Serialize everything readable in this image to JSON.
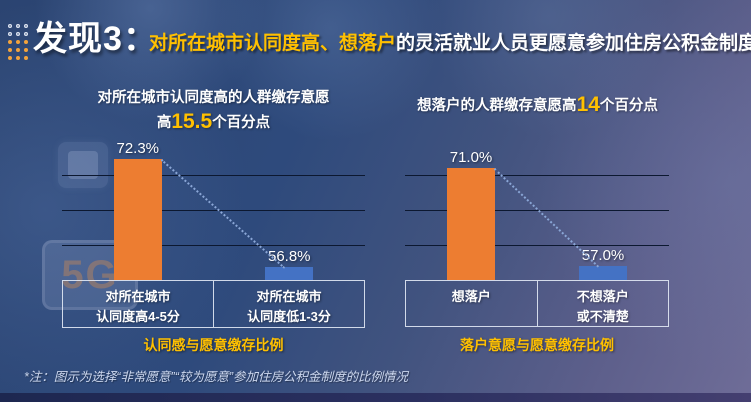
{
  "header": {
    "title": "发现3：",
    "headline_highlight": "对所在城市认同度高、想落户",
    "headline_rest": "的灵活就业人员更愿意参加住房公积金制度"
  },
  "chart_data": [
    {
      "type": "bar",
      "title": "认同感与愿意缴存比例",
      "subtitle": {
        "line1": "对所在城市认同度高的人群缴存意愿",
        "pre": "高",
        "value": "15.5",
        "post": "个百分点"
      },
      "categories": [
        "对所在城市\n认同度高4-5分",
        "对所在城市\n认同度低1-3分"
      ],
      "values": [
        72.3,
        56.8
      ],
      "value_labels": [
        "72.3%",
        "56.8%"
      ],
      "bar_colors": [
        "#ED7D31",
        "#4472C4"
      ],
      "ylim": [
        55,
        75
      ],
      "gridlines": [
        60,
        65,
        70
      ],
      "grid": true,
      "legend": false,
      "annotation": "dotted connector line from bar 1 top to bar 2 top"
    },
    {
      "type": "bar",
      "title": "落户意愿与愿意缴存比例",
      "subtitle": {
        "pre": "想落户的人群缴存意愿高",
        "value": "14",
        "post": "个百分点"
      },
      "categories": [
        "想落户",
        "不想落户\n或不清楚"
      ],
      "values": [
        71.0,
        57.0
      ],
      "value_labels": [
        "71.0%",
        "57.0%"
      ],
      "bar_colors": [
        "#ED7D31",
        "#4472C4"
      ],
      "ylim": [
        55,
        75
      ],
      "gridlines": [
        60,
        65,
        70
      ],
      "grid": true,
      "legend": false,
      "annotation": "dotted connector line from bar 1 top to bar 2 top"
    }
  ],
  "background": {
    "sign_text": "5G"
  },
  "footnote": "*注：图示为选择“非常愿意”“较为愿意”参加住房公积金制度的比例情况",
  "colors": {
    "accent_yellow": "#FFC000",
    "bar_orange": "#ED7D31",
    "bar_blue": "#4472C4"
  }
}
